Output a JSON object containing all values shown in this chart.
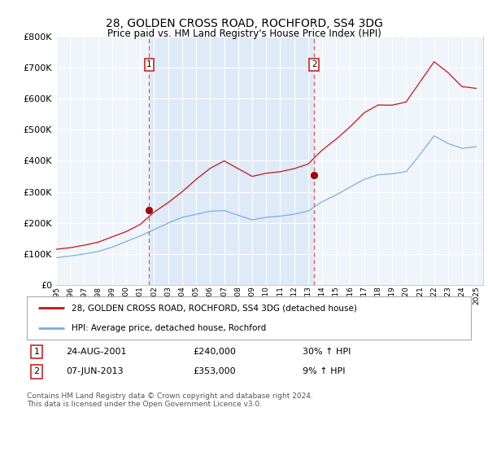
{
  "title": "28, GOLDEN CROSS ROAD, ROCHFORD, SS4 3DG",
  "subtitle": "Price paid vs. HM Land Registry's House Price Index (HPI)",
  "red_line_label": "28, GOLDEN CROSS ROAD, ROCHFORD, SS4 3DG (detached house)",
  "blue_line_label": "HPI: Average price, detached house, Rochford",
  "annotation1_date": "24-AUG-2001",
  "annotation1_price": "£240,000",
  "annotation1_hpi": "30% ↑ HPI",
  "annotation2_date": "07-JUN-2013",
  "annotation2_price": "£353,000",
  "annotation2_hpi": "9% ↑ HPI",
  "footer": "Contains HM Land Registry data © Crown copyright and database right 2024.\nThis data is licensed under the Open Government Licence v3.0.",
  "ylim": [
    0,
    800000
  ],
  "yticks": [
    0,
    100000,
    200000,
    300000,
    400000,
    500000,
    600000,
    700000,
    800000
  ],
  "sale1_x": 2001.65,
  "sale1_y": 240000,
  "sale2_x": 2013.43,
  "sale2_y": 353000,
  "vline1_x": 2001.65,
  "vline2_x": 2013.43,
  "xmin": 1995.0,
  "xmax": 2025.5
}
